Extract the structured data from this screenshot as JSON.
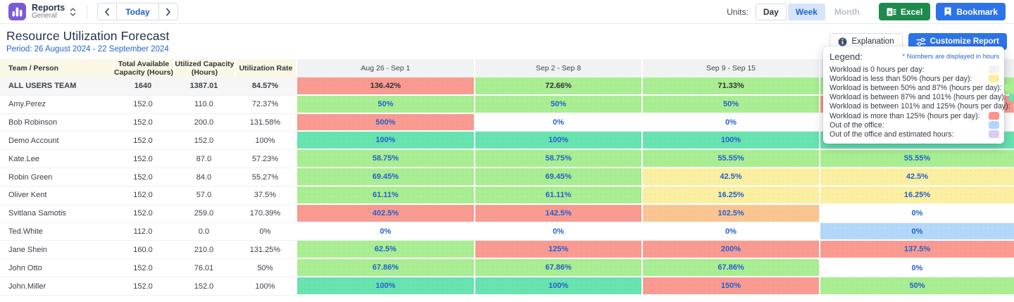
{
  "topbar": {
    "app_title": "Reports",
    "app_subtitle": "General",
    "today_label": "Today",
    "units_label": "Units:",
    "units": {
      "day": "Day",
      "week": "Week",
      "month": "Month",
      "selected": "Week"
    },
    "excel_label": "Excel",
    "bookmark_label": "Bookmark"
  },
  "header": {
    "title": "Resource Utilization Forecast",
    "period": "Period: 26 August 2024 - 22 September 2024",
    "explanation_label": "Explanation",
    "customize_label": "Customize Report"
  },
  "legend": {
    "title": "Legend:",
    "note": "* Numbers are displayed in hours",
    "items": [
      {
        "label": "Workload is 0 hours per day:",
        "color": "#f3f3f3"
      },
      {
        "label": "Workload is less than 50% (hours per day):",
        "color": "#fbee9e"
      },
      {
        "label": "Workload is between 50% and 87% (hours per day):",
        "color": "#a6ee8f"
      },
      {
        "label": "Workload is between 87% and 101% (hours per day):",
        "color": "#66e3ae"
      },
      {
        "label": "Workload is between 101% and 125% (hours per day):",
        "color": "#fbc38e"
      },
      {
        "label": "Workload is more than 125% (hours per day):",
        "color": "#fa958c"
      },
      {
        "label": "Out of the office:",
        "color": "#b3d7fa"
      },
      {
        "label": "Out of the office and estimated hours:",
        "color": "#d9cbf8"
      }
    ]
  },
  "cell_colors": {
    "red": "#fa9b92",
    "green": "#a9ee92",
    "teal": "#68e4b1",
    "yellow": "#fbf0a2",
    "peach": "#fbc592",
    "blue": "#b4d8fa",
    "white": "#ffffff"
  },
  "table": {
    "columns": [
      "Team / Person",
      "Total Available Capacity (Hours)",
      "Utilized Capacity (Hours)",
      "Utilization Rate",
      "Aug 26 - Sep 1",
      "Sep 2 - Sep 8",
      "Sep 9 - Sep 15",
      ""
    ],
    "rows": [
      {
        "name": "ALL USERS TEAM",
        "team": true,
        "capacity": "1640",
        "utilized": "1387.01",
        "rate": "84.57%",
        "weeks": [
          {
            "v": "136.42%",
            "c": "red"
          },
          {
            "v": "72.66%",
            "c": "green"
          },
          {
            "v": "71.33%",
            "c": "green"
          },
          {
            "v": "",
            "c": "green"
          }
        ]
      },
      {
        "name": "Amy.Perez",
        "team": false,
        "capacity": "152.0",
        "utilized": "110.0",
        "rate": "72.37%",
        "weeks": [
          {
            "v": "50%",
            "c": "green"
          },
          {
            "v": "50%",
            "c": "green"
          },
          {
            "v": "50%",
            "c": "green"
          },
          {
            "v": "",
            "c": "red"
          }
        ]
      },
      {
        "name": "Bob Robinson",
        "team": false,
        "capacity": "152.0",
        "utilized": "200.0",
        "rate": "131.58%",
        "weeks": [
          {
            "v": "500%",
            "c": "red"
          },
          {
            "v": "0%",
            "c": "white"
          },
          {
            "v": "0%",
            "c": "white"
          },
          {
            "v": "",
            "c": "white"
          }
        ]
      },
      {
        "name": "Demo Account",
        "team": false,
        "capacity": "152.0",
        "utilized": "152.0",
        "rate": "100%",
        "weeks": [
          {
            "v": "100%",
            "c": "teal"
          },
          {
            "v": "100%",
            "c": "teal"
          },
          {
            "v": "100%",
            "c": "teal"
          },
          {
            "v": "",
            "c": "teal"
          }
        ]
      },
      {
        "name": "Kate.Lee",
        "team": false,
        "capacity": "152.0",
        "utilized": "87.0",
        "rate": "57.23%",
        "weeks": [
          {
            "v": "58.75%",
            "c": "green"
          },
          {
            "v": "58.75%",
            "c": "green"
          },
          {
            "v": "55.55%",
            "c": "green"
          },
          {
            "v": "55.55%",
            "c": "green"
          }
        ]
      },
      {
        "name": "Robin Green",
        "team": false,
        "capacity": "152.0",
        "utilized": "84.0",
        "rate": "55.27%",
        "weeks": [
          {
            "v": "69.45%",
            "c": "green"
          },
          {
            "v": "69.45%",
            "c": "green"
          },
          {
            "v": "42.5%",
            "c": "yellow"
          },
          {
            "v": "42.5%",
            "c": "yellow"
          }
        ]
      },
      {
        "name": "Oliver Kent",
        "team": false,
        "capacity": "152.0",
        "utilized": "57.0",
        "rate": "37.5%",
        "weeks": [
          {
            "v": "61.11%",
            "c": "green"
          },
          {
            "v": "61.11%",
            "c": "green"
          },
          {
            "v": "16.25%",
            "c": "yellow"
          },
          {
            "v": "16.25%",
            "c": "yellow"
          }
        ]
      },
      {
        "name": "Svitlana Samotis",
        "team": false,
        "capacity": "152.0",
        "utilized": "259.0",
        "rate": "170.39%",
        "weeks": [
          {
            "v": "402.5%",
            "c": "red"
          },
          {
            "v": "142.5%",
            "c": "red"
          },
          {
            "v": "102.5%",
            "c": "peach"
          },
          {
            "v": "0%",
            "c": "white"
          }
        ]
      },
      {
        "name": "Ted.White",
        "team": false,
        "capacity": "112.0",
        "utilized": "0.0",
        "rate": "0%",
        "weeks": [
          {
            "v": "0%",
            "c": "white"
          },
          {
            "v": "0%",
            "c": "white"
          },
          {
            "v": "0%",
            "c": "white"
          },
          {
            "v": "0%",
            "c": "blue"
          }
        ]
      },
      {
        "name": "Jane Shein",
        "team": false,
        "capacity": "160.0",
        "utilized": "210.0",
        "rate": "131.25%",
        "weeks": [
          {
            "v": "62.5%",
            "c": "green"
          },
          {
            "v": "125%",
            "c": "red"
          },
          {
            "v": "200%",
            "c": "red"
          },
          {
            "v": "137.5%",
            "c": "red"
          }
        ]
      },
      {
        "name": "John Otto",
        "team": false,
        "capacity": "152.0",
        "utilized": "76.01",
        "rate": "50%",
        "weeks": [
          {
            "v": "67.86%",
            "c": "green"
          },
          {
            "v": "67.86%",
            "c": "green"
          },
          {
            "v": "67.86%",
            "c": "green"
          },
          {
            "v": "0%",
            "c": "white"
          }
        ]
      },
      {
        "name": "John.Miller",
        "team": false,
        "capacity": "152.0",
        "utilized": "152.0",
        "rate": "100%",
        "weeks": [
          {
            "v": "100%",
            "c": "teal"
          },
          {
            "v": "100%",
            "c": "teal"
          },
          {
            "v": "150%",
            "c": "red"
          },
          {
            "v": "50%",
            "c": "green"
          }
        ]
      }
    ]
  }
}
